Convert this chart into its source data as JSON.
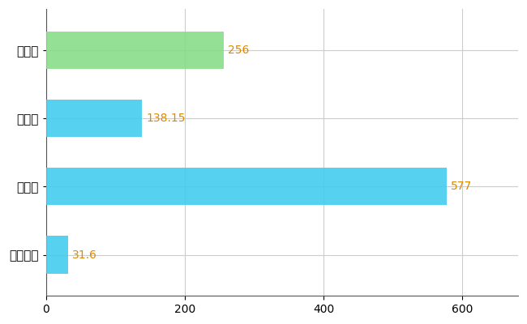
{
  "categories": [
    "豊島区",
    "県平均",
    "県最大",
    "全国平均"
  ],
  "values": [
    256,
    138.15,
    577,
    31.6
  ],
  "bar_colors": [
    "#88dd88",
    "#44ccee",
    "#44ccee",
    "#44ccee"
  ],
  "value_labels": [
    "256",
    "138.15",
    "577",
    "31.6"
  ],
  "value_label_color": "#dd8800",
  "xlim": [
    0,
    680
  ],
  "xticks": [
    0,
    200,
    400,
    600
  ],
  "grid_color": "#cccccc",
  "background_color": "#ffffff",
  "bar_height": 0.55,
  "label_fontsize": 11,
  "tick_fontsize": 10,
  "value_label_fontsize": 10
}
